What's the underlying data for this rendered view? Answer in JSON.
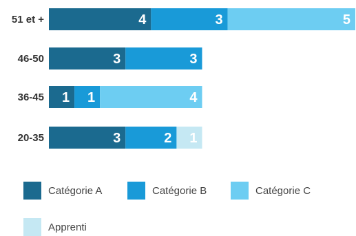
{
  "chart_data": {
    "type": "bar",
    "orientation": "horizontal",
    "stacked": true,
    "categories": [
      "51 et +",
      "46-50",
      "36-45",
      "20-35"
    ],
    "series": [
      {
        "name": "Catégorie A",
        "color": "#1b6a8f",
        "values": [
          4,
          3,
          1,
          3
        ]
      },
      {
        "name": "Catégorie B",
        "color": "#199ad8",
        "values": [
          3,
          3,
          1,
          2
        ]
      },
      {
        "name": "Catégorie C",
        "color": "#6dcdf2",
        "values": [
          5,
          0,
          4,
          0
        ]
      },
      {
        "name": "Apprenti",
        "color": "#c5e8f3",
        "values": [
          0,
          0,
          0,
          1
        ]
      }
    ],
    "xlim": [
      0,
      12
    ],
    "grid": false,
    "legend_position": "bottom"
  }
}
